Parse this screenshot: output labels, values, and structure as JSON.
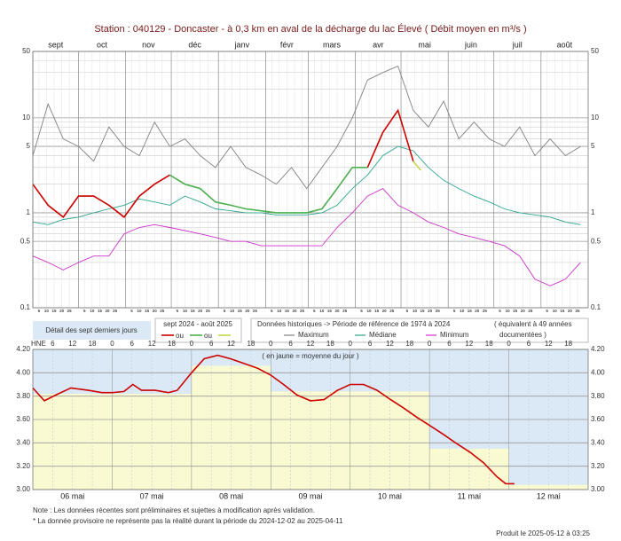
{
  "chart_data": [
    {
      "type": "line",
      "title": "Station : 040129    -  Doncaster - à 0,3 km en aval de la décharge du lac Élevé   ( Débit moyen en m³/s )",
      "log_y": true,
      "xlim": [
        0,
        365
      ],
      "ylim": [
        0.1,
        50
      ],
      "yticks": [
        0.1,
        0.5,
        1,
        5,
        10,
        50
      ],
      "minor_yticks": [
        0.2,
        0.3,
        0.4,
        0.6,
        0.7,
        0.8,
        0.9,
        2,
        3,
        4,
        6,
        7,
        8,
        9,
        20,
        30,
        40
      ],
      "months": [
        {
          "value": 0,
          "label": "sept"
        },
        {
          "value": 30,
          "label": "oct"
        },
        {
          "value": 61,
          "label": "nov"
        },
        {
          "value": 91,
          "label": "déc"
        },
        {
          "value": 122,
          "label": "janv"
        },
        {
          "value": 153,
          "label": "févr"
        },
        {
          "value": 181,
          "label": "mars"
        },
        {
          "value": 212,
          "label": "avr"
        },
        {
          "value": 242,
          "label": "mai"
        },
        {
          "value": 273,
          "label": "juin"
        },
        {
          "value": 303,
          "label": "juil"
        },
        {
          "value": 334,
          "label": "août"
        }
      ],
      "day_ticks": [
        5,
        10,
        15,
        20,
        25
      ],
      "series": [
        {
          "name": "Maximum",
          "color": "#808080",
          "x": [
            0,
            10,
            20,
            30,
            40,
            50,
            60,
            70,
            80,
            90,
            100,
            110,
            120,
            130,
            140,
            150,
            160,
            170,
            180,
            190,
            200,
            210,
            220,
            230,
            240,
            250,
            260,
            270,
            280,
            290,
            300,
            310,
            320,
            330,
            340,
            350,
            360
          ],
          "values": [
            4,
            14,
            6,
            5,
            3.5,
            8,
            5,
            4,
            9,
            5,
            6,
            4,
            3,
            5,
            3,
            2.5,
            2,
            3,
            1.8,
            3,
            5,
            10,
            25,
            30,
            35,
            12,
            8,
            15,
            6,
            9,
            6,
            5,
            8,
            4,
            6,
            4,
            5
          ]
        },
        {
          "name": "Médiane",
          "color": "#2ca58d",
          "x": [
            0,
            10,
            20,
            30,
            40,
            50,
            60,
            70,
            80,
            90,
            100,
            110,
            120,
            130,
            140,
            150,
            160,
            170,
            180,
            190,
            200,
            210,
            220,
            230,
            240,
            250,
            260,
            270,
            280,
            290,
            300,
            310,
            320,
            330,
            340,
            350,
            360
          ],
          "values": [
            0.8,
            0.75,
            0.85,
            0.9,
            1.0,
            1.1,
            1.2,
            1.4,
            1.3,
            1.2,
            1.5,
            1.3,
            1.1,
            1.05,
            1.0,
            1.0,
            0.95,
            0.95,
            0.95,
            1.0,
            1.2,
            1.8,
            2.5,
            4,
            5,
            4.5,
            3,
            2.2,
            1.8,
            1.5,
            1.3,
            1.1,
            1.0,
            0.95,
            0.9,
            0.8,
            0.75
          ]
        },
        {
          "name": "Minimum",
          "color": "#cc33cc",
          "x": [
            0,
            10,
            20,
            30,
            40,
            50,
            60,
            70,
            80,
            90,
            100,
            110,
            120,
            130,
            140,
            150,
            160,
            170,
            180,
            190,
            200,
            210,
            220,
            230,
            240,
            250,
            260,
            270,
            280,
            290,
            300,
            310,
            320,
            330,
            340,
            350,
            360
          ],
          "values": [
            0.35,
            0.3,
            0.25,
            0.3,
            0.35,
            0.35,
            0.6,
            0.7,
            0.75,
            0.7,
            0.65,
            0.6,
            0.55,
            0.5,
            0.5,
            0.45,
            0.45,
            0.45,
            0.45,
            0.45,
            0.7,
            1.0,
            1.5,
            1.8,
            1.2,
            1.0,
            0.8,
            0.7,
            0.6,
            0.55,
            0.5,
            0.45,
            0.35,
            0.2,
            0.17,
            0.2,
            0.3
          ]
        },
        {
          "color": "#cc0000",
          "x": [
            0,
            10,
            20,
            30,
            40,
            50,
            60,
            70,
            80,
            90,
            100,
            110,
            120,
            130,
            140,
            150,
            160,
            170,
            180,
            190,
            200,
            210,
            220,
            230,
            240,
            250
          ],
          "values": [
            2,
            1.2,
            0.9,
            1.5,
            1.5,
            1.2,
            0.9,
            1.5,
            2,
            2.5,
            null,
            null,
            null,
            null,
            null,
            null,
            null,
            null,
            null,
            null,
            null,
            null,
            3,
            7,
            12,
            3.5
          ]
        },
        {
          "color": "#4caf50",
          "x": [
            0,
            10,
            20,
            30,
            40,
            50,
            60,
            70,
            80,
            90,
            100,
            110,
            120,
            130,
            140,
            150,
            160,
            170,
            180,
            190,
            200,
            210,
            220,
            230,
            240,
            250
          ],
          "values": [
            null,
            null,
            null,
            null,
            null,
            null,
            null,
            null,
            null,
            2.5,
            2,
            1.8,
            1.3,
            1.2,
            1.1,
            1.05,
            1.0,
            1.0,
            1.0,
            1.1,
            1.8,
            3,
            3,
            null,
            null,
            null
          ]
        },
        {
          "color": "#c5d84a",
          "x": [
            250,
            255
          ],
          "values": [
            3.5,
            2.8
          ]
        }
      ]
    },
    {
      "type": "line",
      "log_y": false,
      "xlim": [
        0,
        7
      ],
      "ylim": [
        3,
        4.2
      ],
      "yticks": [
        {
          "value": 3,
          "label": "3.00"
        },
        {
          "value": 3.2,
          "label": "3.20"
        },
        {
          "value": 3.4,
          "label": "3.40"
        },
        {
          "value": 3.6,
          "label": "3.60"
        },
        {
          "value": 3.8,
          "label": "3.80"
        },
        {
          "value": 4,
          "label": "4.00"
        },
        {
          "value": 4.2,
          "label": "4.20"
        }
      ],
      "days": [
        "06 mai",
        "07 mai",
        "08 mai",
        "09 mai",
        "10 mai",
        "11 mai",
        "12 mai"
      ],
      "hours": [
        0,
        6,
        12,
        18
      ],
      "hour_axis_label": "HNE",
      "annotation": "( en jaune = moyenne du jour )",
      "daily_means": {
        "color": "#fafad2",
        "values": [
          3.82,
          3.82,
          4.06,
          3.84,
          3.84,
          3.35,
          3.04
        ]
      },
      "series": [
        {
          "color": "#cc0000",
          "x": [
            0,
            0.145,
            0.29,
            0.48,
            0.7,
            0.87,
            1.0,
            1.15,
            1.26,
            1.37,
            1.54,
            1.71,
            1.82,
            2.0,
            2.16,
            2.33,
            2.49,
            2.66,
            2.83,
            3.0,
            3.16,
            3.33,
            3.5,
            3.67,
            3.84,
            4.0,
            4.17,
            4.34,
            4.51,
            4.67,
            4.84,
            5.0,
            5.18,
            5.35,
            5.51,
            5.68,
            5.85,
            5.96,
            6.07
          ],
          "values": [
            3.87,
            3.76,
            3.81,
            3.87,
            3.85,
            3.83,
            3.83,
            3.84,
            3.9,
            3.85,
            3.85,
            3.83,
            3.85,
            4.0,
            4.12,
            4.15,
            4.12,
            4.08,
            4.04,
            3.98,
            3.9,
            3.81,
            3.76,
            3.77,
            3.85,
            3.9,
            3.9,
            3.85,
            3.77,
            3.7,
            3.62,
            3.55,
            3.47,
            3.39,
            3.32,
            3.23,
            3.11,
            3.05,
            3.05
          ]
        }
      ]
    }
  ],
  "legend": {
    "detail": "Détail des sept derniers jours",
    "current_period": "sept 2024 - août 2025",
    "or": "ou",
    "historical": "Données historiques -> Période de référence  de 1974 à 2024",
    "equivalent_1": "( équivalent à 49 années",
    "equivalent_2": "documentées )"
  },
  "notes": [
    "Note : Les données récentes sont préliminaires et sujettes à modification après validation.",
    "* La donnée provisoire ne représente pas la réalité durant la période du 2024-12-02 au 2025-04-11"
  ],
  "produced": "Produit le 2025-05-12 à 03:25"
}
